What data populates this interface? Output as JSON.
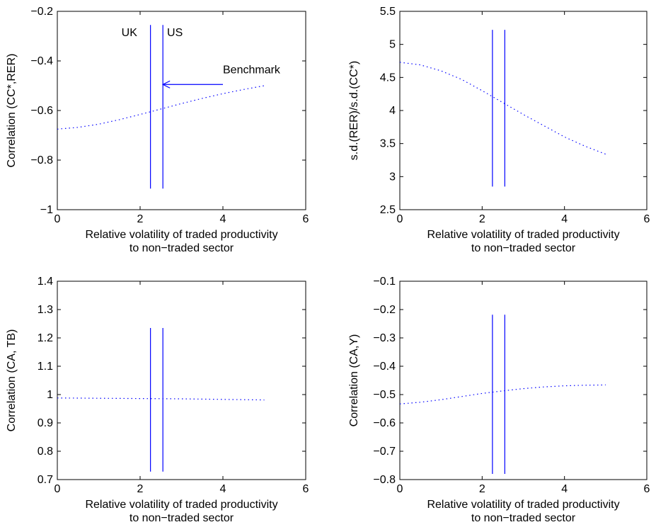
{
  "chart_data": [
    {
      "type": "line",
      "xlim": [
        0,
        6
      ],
      "ylim": [
        -1,
        -0.2
      ],
      "xticks": [
        "0",
        "2",
        "4",
        "6"
      ],
      "yticks": [
        "−1",
        "−0.8",
        "−0.6",
        "−0.4",
        "−0.2"
      ],
      "xlabel": [
        "Relative volatility of traded productivity",
        "to non−traded sector"
      ],
      "ylabel": "Correlation (CC*,RER)",
      "series": [
        {
          "style": "dotted",
          "color": "#0000ff",
          "x": [
            0,
            0.5,
            1,
            1.5,
            2,
            2.5,
            3,
            3.5,
            4,
            4.5,
            5
          ],
          "y": [
            -0.675,
            -0.668,
            -0.655,
            -0.637,
            -0.616,
            -0.594,
            -0.572,
            -0.551,
            -0.532,
            -0.515,
            -0.5
          ]
        }
      ],
      "vlines": [
        {
          "x": 2.25,
          "y": [
            -0.915,
            -0.255
          ]
        },
        {
          "x": 2.55,
          "y": [
            -0.915,
            -0.255
          ]
        }
      ],
      "annotations": [
        {
          "text": "UK",
          "x": 1.55,
          "y": -0.3
        },
        {
          "text": "US",
          "x": 2.65,
          "y": -0.3
        },
        {
          "text": "Benchmark",
          "x": 4.0,
          "y": -0.45
        }
      ],
      "arrow": {
        "from": [
          4.0,
          -0.495
        ],
        "to": [
          2.55,
          -0.495
        ],
        "label": "Benchmark"
      }
    },
    {
      "type": "line",
      "xlim": [
        0,
        6
      ],
      "ylim": [
        2.5,
        5.5
      ],
      "xticks": [
        "0",
        "2",
        "4",
        "6"
      ],
      "yticks": [
        "2.5",
        "3",
        "3.5",
        "4",
        "4.5",
        "5",
        "5.5"
      ],
      "xlabel": [
        "Relative volatility of traded productivity",
        "to non−traded sector"
      ],
      "ylabel": "s.d.(RER)/s.d.(CC*)",
      "series": [
        {
          "style": "dotted",
          "color": "#0000ff",
          "x": [
            0,
            0.5,
            1,
            1.5,
            2,
            2.5,
            3,
            3.5,
            4,
            4.5,
            5
          ],
          "y": [
            4.73,
            4.69,
            4.6,
            4.47,
            4.3,
            4.12,
            3.94,
            3.77,
            3.6,
            3.46,
            3.34
          ]
        }
      ],
      "vlines": [
        {
          "x": 2.25,
          "y": [
            2.85,
            5.22
          ]
        },
        {
          "x": 2.55,
          "y": [
            2.85,
            5.22
          ]
        }
      ]
    },
    {
      "type": "line",
      "xlim": [
        0,
        6
      ],
      "ylim": [
        0.7,
        1.4
      ],
      "xticks": [
        "0",
        "2",
        "4",
        "6"
      ],
      "yticks": [
        "0.7",
        "0.8",
        "0.9",
        "1",
        "1.1",
        "1.2",
        "1.3",
        "1.4"
      ],
      "xlabel": [
        "Relative volatility of traded productivity",
        "to non−traded sector"
      ],
      "ylabel": "Correlation (CA, TB)",
      "series": [
        {
          "style": "dotted",
          "color": "#0000ff",
          "x": [
            0,
            0.5,
            1,
            1.5,
            2,
            2.5,
            3,
            3.5,
            4,
            4.5,
            5
          ],
          "y": [
            0.988,
            0.9875,
            0.987,
            0.9865,
            0.986,
            0.9855,
            0.985,
            0.984,
            0.983,
            0.982,
            0.981
          ]
        }
      ],
      "vlines": [
        {
          "x": 2.25,
          "y": [
            0.728,
            1.235
          ]
        },
        {
          "x": 2.55,
          "y": [
            0.728,
            1.235
          ]
        }
      ]
    },
    {
      "type": "line",
      "xlim": [
        0,
        6
      ],
      "ylim": [
        -0.8,
        -0.1
      ],
      "xticks": [
        "0",
        "2",
        "4",
        "6"
      ],
      "yticks": [
        "−0.8",
        "−0.7",
        "−0.6",
        "−0.5",
        "−0.4",
        "−0.3",
        "−0.2",
        "−0.1"
      ],
      "xlabel": [
        "Relative volatility of traded productivity",
        "to non−traded sector"
      ],
      "ylabel": "Correlation (CA,Y)",
      "series": [
        {
          "style": "dotted",
          "color": "#0000ff",
          "x": [
            0,
            0.5,
            1,
            1.5,
            2,
            2.5,
            3,
            3.5,
            4,
            4.5,
            5
          ],
          "y": [
            -0.533,
            -0.527,
            -0.518,
            -0.507,
            -0.496,
            -0.487,
            -0.479,
            -0.473,
            -0.469,
            -0.467,
            -0.466
          ]
        }
      ],
      "vlines": [
        {
          "x": 2.25,
          "y": [
            -0.78,
            -0.218
          ]
        },
        {
          "x": 2.55,
          "y": [
            -0.78,
            -0.218
          ]
        }
      ]
    }
  ]
}
